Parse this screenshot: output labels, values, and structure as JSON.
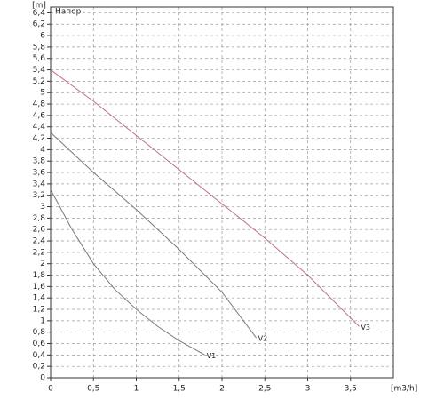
{
  "chart_data": {
    "type": "line",
    "title": "Напор",
    "y_label": "[m]",
    "x_label": "[m3/h]",
    "xlim": [
      0,
      4
    ],
    "ylim": [
      0,
      6.5
    ],
    "grid": true,
    "xticks": [
      0,
      {
        "value": 0.5,
        "label": "0,5"
      },
      1,
      {
        "value": 1.5,
        "label": "1,5"
      },
      2,
      {
        "value": 2.5,
        "label": "2,5"
      },
      3,
      {
        "value": 3.5,
        "label": "3,5"
      }
    ],
    "yticks": [
      0,
      {
        "value": 0.2,
        "label": "0,2"
      },
      {
        "value": 0.4,
        "label": "0,4"
      },
      {
        "value": 0.6,
        "label": "0,6"
      },
      {
        "value": 0.8,
        "label": "0,8"
      },
      1,
      {
        "value": 1.2,
        "label": "1,2"
      },
      {
        "value": 1.4,
        "label": "1,4"
      },
      {
        "value": 1.6,
        "label": "1,6"
      },
      {
        "value": 1.8,
        "label": "1,8"
      },
      2,
      {
        "value": 2.2,
        "label": "2,2"
      },
      {
        "value": 2.4,
        "label": "2,4"
      },
      {
        "value": 2.6,
        "label": "2,6"
      },
      {
        "value": 2.8,
        "label": "2,8"
      },
      3,
      {
        "value": 3.2,
        "label": "3,2"
      },
      {
        "value": 3.4,
        "label": "3,4"
      },
      {
        "value": 3.6,
        "label": "3,6"
      },
      {
        "value": 3.8,
        "label": "3,8"
      },
      4,
      {
        "value": 4.2,
        "label": "4,2"
      },
      {
        "value": 4.4,
        "label": "4,4"
      },
      {
        "value": 4.6,
        "label": "4,6"
      },
      {
        "value": 4.8,
        "label": "4,8"
      },
      5,
      {
        "value": 5.2,
        "label": "5,2"
      },
      {
        "value": 5.4,
        "label": "5,4"
      },
      {
        "value": 5.6,
        "label": "5,6"
      },
      {
        "value": 5.8,
        "label": "5,8"
      },
      6,
      {
        "value": 6.2,
        "label": "6,2"
      },
      {
        "value": 6.4,
        "label": "6,4"
      }
    ],
    "series": [
      {
        "name": "V1",
        "color": "#7a7a7a",
        "x": [
          0,
          0.25,
          0.5,
          0.75,
          1,
          1.25,
          1.5,
          1.8
        ],
        "values": [
          3.3,
          2.6,
          2.0,
          1.55,
          1.2,
          0.9,
          0.65,
          0.4
        ]
      },
      {
        "name": "V2",
        "color": "#7a7a7a",
        "x": [
          0,
          0.5,
          1,
          1.5,
          2,
          2.4
        ],
        "values": [
          4.3,
          3.6,
          2.95,
          2.25,
          1.5,
          0.7
        ]
      },
      {
        "name": "V3",
        "color": "#c0707e",
        "x": [
          0,
          0.5,
          1,
          1.5,
          2,
          2.5,
          3,
          3.6
        ],
        "values": [
          5.4,
          4.85,
          4.25,
          3.65,
          3.05,
          2.45,
          1.8,
          0.9
        ]
      }
    ]
  }
}
